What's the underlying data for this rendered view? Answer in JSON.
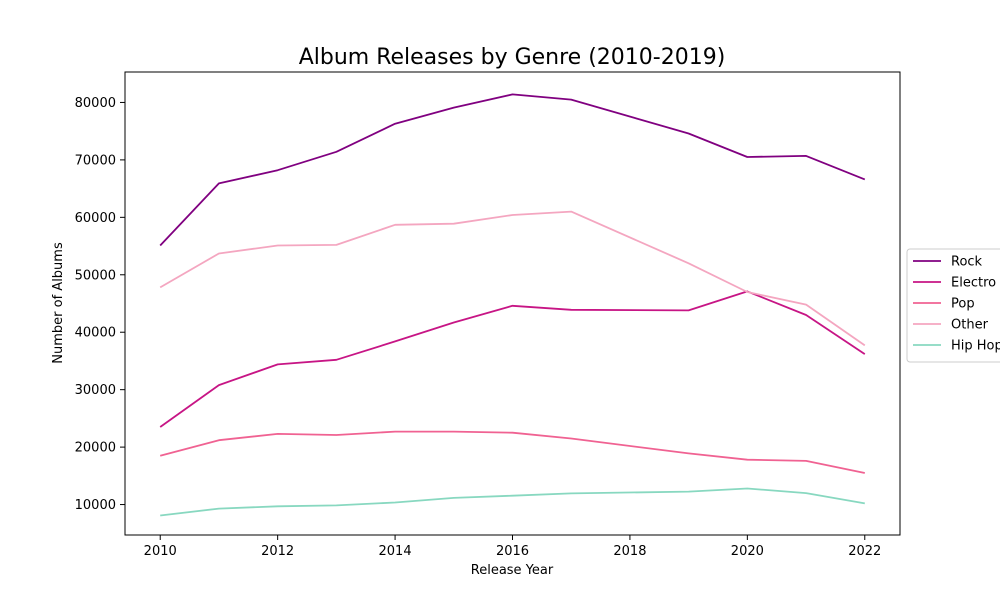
{
  "chart_data": {
    "type": "line",
    "title": "Album Releases by Genre (2010-2019)",
    "xlabel": "Release Year",
    "ylabel": "Number of Albums",
    "xlim": [
      2009.4,
      2022.6
    ],
    "ylim": [
      4700,
      85300
    ],
    "x_ticks": [
      2010,
      2012,
      2014,
      2016,
      2018,
      2020,
      2022
    ],
    "y_ticks": [
      10000,
      20000,
      30000,
      40000,
      50000,
      60000,
      70000,
      80000
    ],
    "grid": false,
    "legend_position": "right",
    "x": [
      2010,
      2011,
      2012,
      2013,
      2014,
      2015,
      2016,
      2017,
      2019,
      2020,
      2021,
      2022
    ],
    "series": [
      {
        "name": "Rock",
        "color": "#800080",
        "values": [
          55100,
          65900,
          68200,
          71400,
          76300,
          79100,
          81400,
          80500,
          74600,
          70500,
          70700,
          66600
        ]
      },
      {
        "name": "Electro",
        "color": "#c71585",
        "values": [
          23500,
          30800,
          34400,
          35200,
          38400,
          41700,
          44600,
          43900,
          43800,
          47100,
          43000,
          36200
        ]
      },
      {
        "name": "Pop",
        "color": "#f06292",
        "values": [
          18500,
          21200,
          22300,
          22100,
          22700,
          22700,
          22500,
          21500,
          18900,
          17800,
          17600,
          15500
        ]
      },
      {
        "name": "Other",
        "color": "#f4a6c0",
        "values": [
          47800,
          53700,
          55100,
          55200,
          58700,
          58900,
          60400,
          61000,
          52000,
          47000,
          44800,
          37700
        ]
      },
      {
        "name": "Hip Hop",
        "color": "#88d8c0",
        "values": [
          8100,
          9300,
          9700,
          9850,
          10350,
          11150,
          11550,
          11950,
          12250,
          12800,
          12000,
          10200
        ]
      }
    ]
  }
}
